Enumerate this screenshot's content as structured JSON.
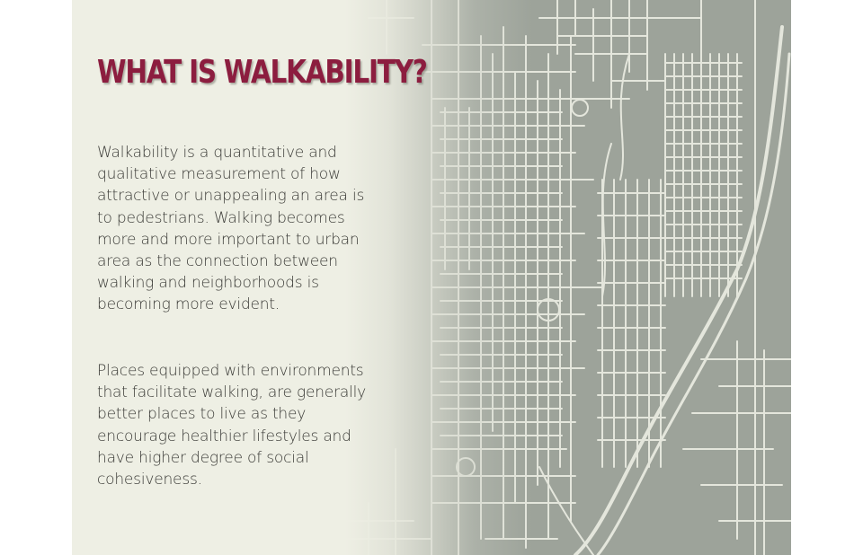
{
  "slide": {
    "title": "WHAT IS WALKABILITY?",
    "paragraphs": [
      "Walkability is a quantitative and qualitative measurement of how attractive or unappealing an area is to pedestrians. Walking becomes more and more important to urban area as the connection between walking and neighborhoods is becoming more evident.",
      "Places equipped with environments that facilitate walking, are generally better places to live as they encourage healthier lifestyles and have higher degree of social cohesiveness."
    ],
    "background": "street-map-image"
  },
  "colors": {
    "title": "#8c1d3f",
    "text": "#3a3a36",
    "panel": "#eeefe4",
    "map": "#9da39a",
    "streets": "#e4e6dc"
  }
}
